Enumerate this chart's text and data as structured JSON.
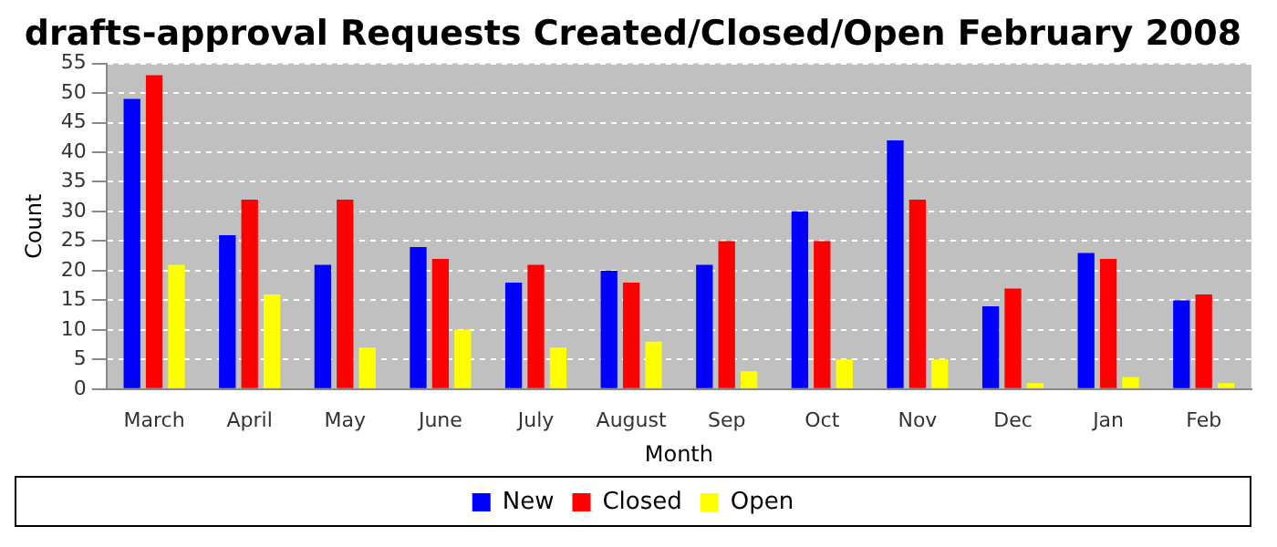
{
  "chart_data": {
    "type": "bar",
    "title": "drafts-approval Requests Created/Closed/Open February 2008",
    "xlabel": "Month",
    "ylabel": "Count",
    "categories": [
      "March",
      "April",
      "May",
      "June",
      "July",
      "August",
      "Sep",
      "Oct",
      "Nov",
      "Dec",
      "Jan",
      "Feb"
    ],
    "series": [
      {
        "name": "New",
        "color": "#0000ff",
        "values": [
          49,
          26,
          21,
          24,
          18,
          20,
          21,
          30,
          42,
          14,
          23,
          15
        ]
      },
      {
        "name": "Closed",
        "color": "#ff0000",
        "values": [
          53,
          32,
          32,
          22,
          21,
          18,
          25,
          25,
          32,
          17,
          22,
          16
        ]
      },
      {
        "name": "Open",
        "color": "#ffff00",
        "values": [
          21,
          16,
          7,
          10,
          7,
          8,
          3,
          5,
          5,
          1,
          2,
          1
        ]
      }
    ],
    "ylim": [
      0,
      55
    ],
    "yticks": [
      0,
      5,
      10,
      15,
      20,
      25,
      30,
      35,
      40,
      45,
      50,
      55
    ],
    "grid": "y",
    "legend": "bottom"
  }
}
